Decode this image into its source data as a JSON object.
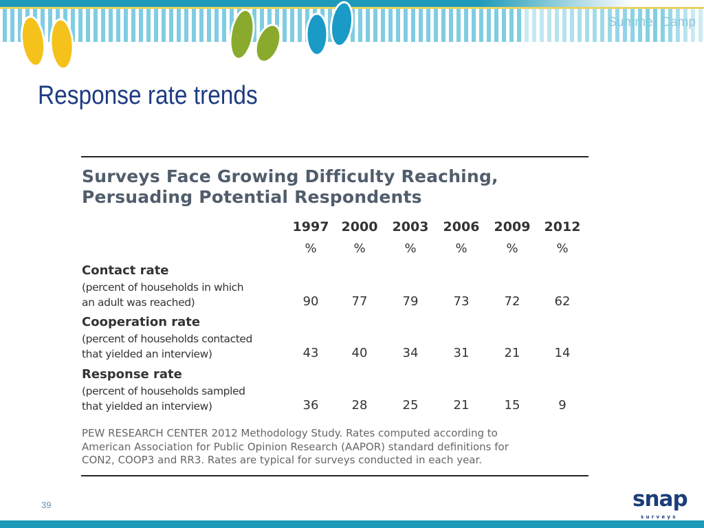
{
  "header": {
    "brand": "Summer Camp",
    "title": "Response rate trends",
    "colors": {
      "teal": "#1d9ab8",
      "stripe": "#7fcde2",
      "yellow": "#f5c21b",
      "green": "#8aaa2e",
      "blue": "#1a9ac6"
    }
  },
  "table": {
    "title_line1": "Surveys Face Growing Difficulty Reaching,",
    "title_line2": "Persuading Potential Respondents",
    "years": [
      "1997",
      "2000",
      "2003",
      "2006",
      "2009",
      "2012"
    ],
    "unit": "%",
    "rows": [
      {
        "label": "Contact rate",
        "desc1": "(percent of households in which",
        "desc2": "an adult was reached)",
        "values": [
          "90",
          "77",
          "79",
          "73",
          "72",
          "62"
        ]
      },
      {
        "label": "Cooperation rate",
        "desc1": "(percent of households contacted",
        "desc2": "that yielded an interview)",
        "values": [
          "43",
          "40",
          "34",
          "31",
          "21",
          "14"
        ]
      },
      {
        "label": "Response rate",
        "desc1": "(percent of households sampled",
        "desc2": "that yielded an interview)",
        "values": [
          "36",
          "28",
          "25",
          "21",
          "15",
          "9"
        ]
      }
    ],
    "note": [
      "PEW RESEARCH  CENTER 2012 Methodology Study. Rates computed according to",
      "American Association for Public Opinion Research (AAPOR)  standard definitions for",
      "CON2, COOP3  and RR3.  Rates are typical for surveys conducted in each year."
    ]
  },
  "footer": {
    "page_number": "39",
    "logo": "snap surveys"
  }
}
